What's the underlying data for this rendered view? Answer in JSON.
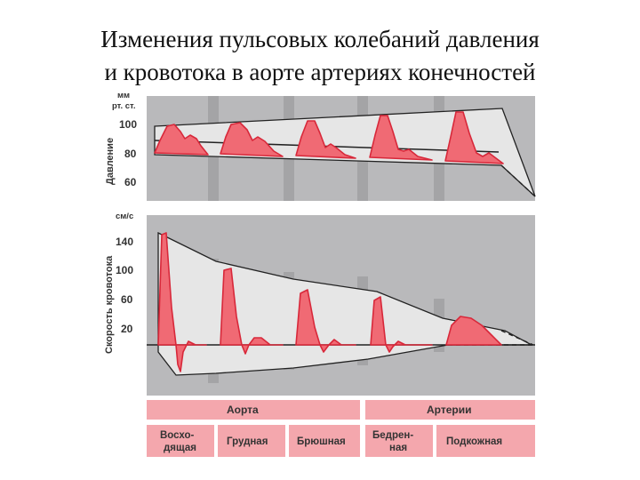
{
  "title": {
    "line1": "Изменения пульсовых колебаний давления",
    "line2": "и кровотока в аорте артериях конечностей"
  },
  "pressure_panel": {
    "unit_line1": "мм",
    "unit_line2": "рт. ст.",
    "axis_title": "Давление",
    "ticks": [
      "100",
      "80",
      "60"
    ]
  },
  "flow_panel": {
    "unit": "см/с",
    "axis_title": "Скорость кровотока",
    "ticks": [
      "140",
      "100",
      "60",
      "20"
    ]
  },
  "groups": {
    "aorta": "Аорта",
    "arteries": "Артерии"
  },
  "segments": {
    "ascending_line1": "Восхо-",
    "ascending_line2": "дящая",
    "thoracic": "Грудная",
    "abdominal": "Брюшная",
    "femoral_line1": "Бедрен-",
    "femoral_line2": "ная",
    "subcutaneous": "Подкожная"
  },
  "colors": {
    "wave": "#f06a74",
    "panel": "#b9b9bb",
    "band": "#f4a7ad"
  }
}
